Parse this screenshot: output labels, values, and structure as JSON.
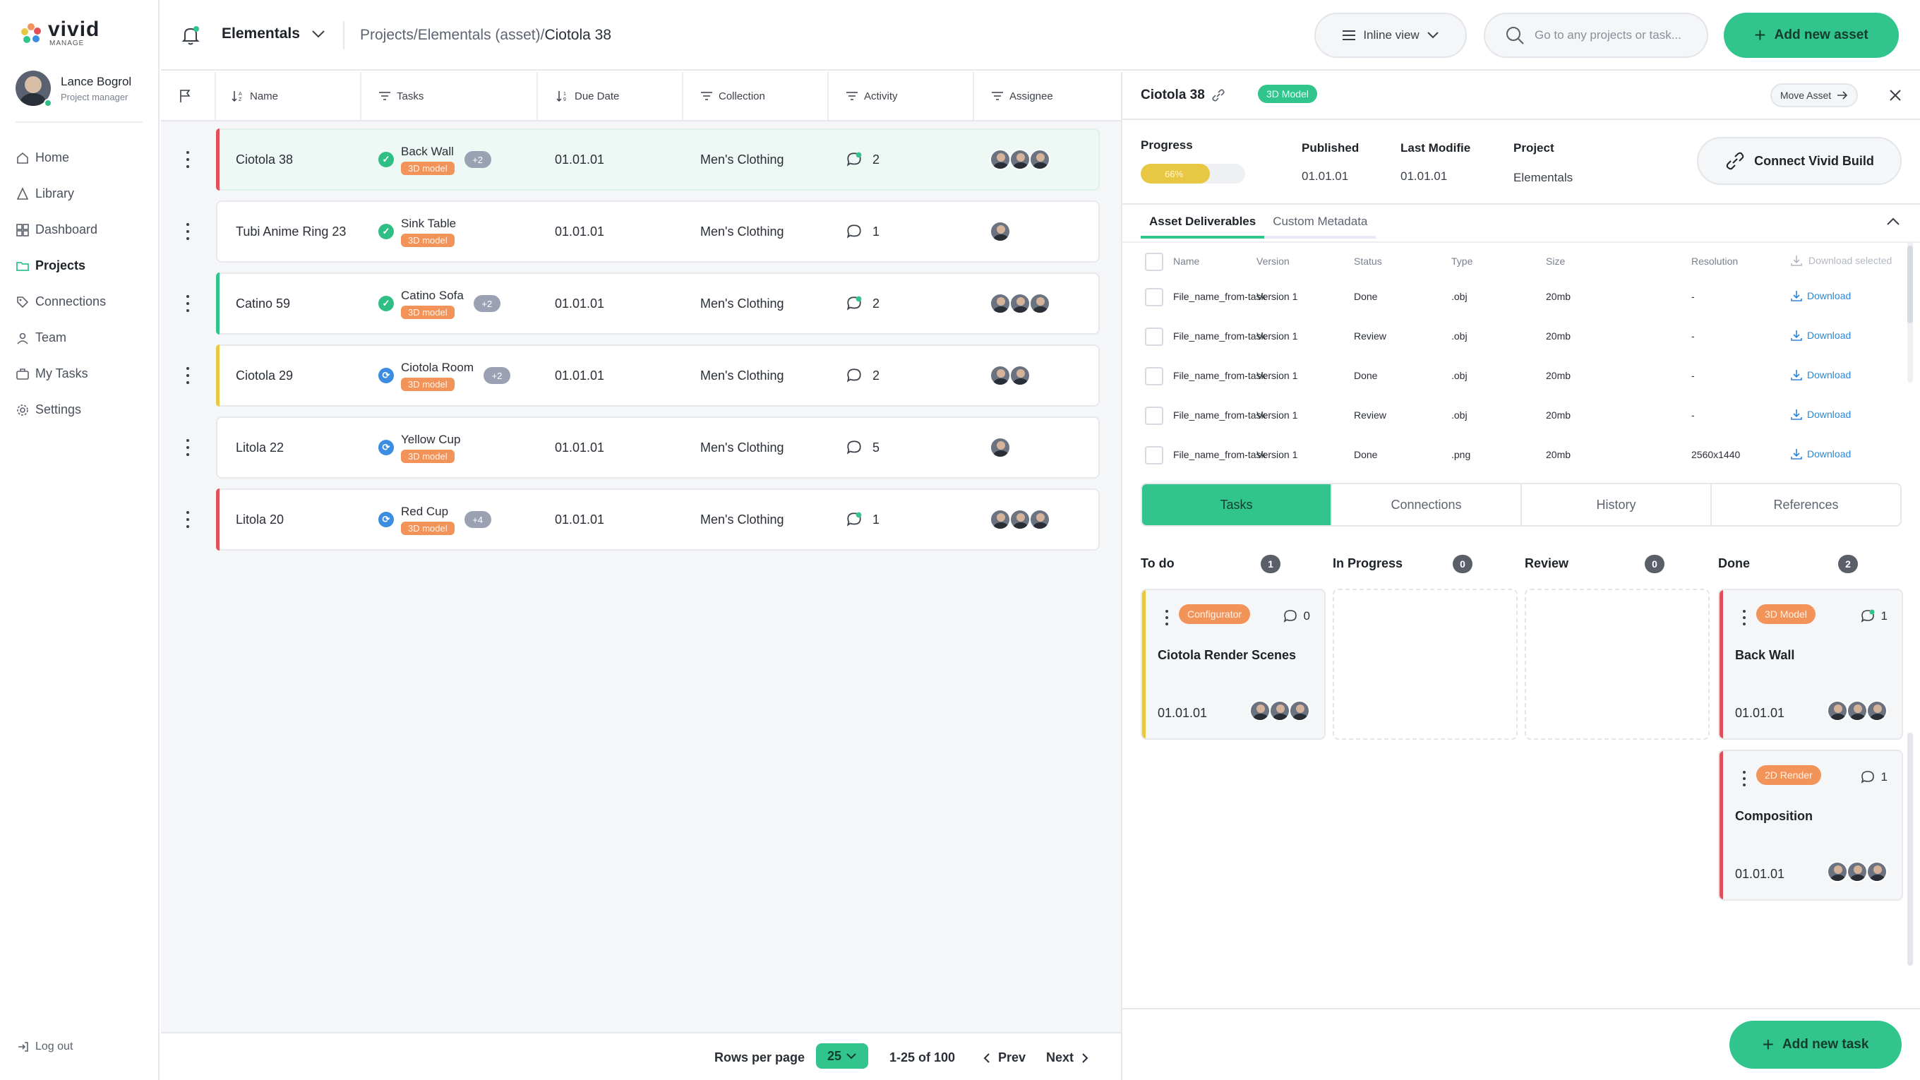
{
  "app": {
    "brand": "vivid",
    "brand_sub": "MANAGE"
  },
  "user": {
    "name": "Lance Bogrol",
    "role": "Project manager"
  },
  "nav": [
    {
      "label": "Home",
      "icon": "home-icon"
    },
    {
      "label": "Library",
      "icon": "library-icon"
    },
    {
      "label": "Dashboard",
      "icon": "dashboard-icon"
    },
    {
      "label": "Projects",
      "icon": "folder-icon",
      "active": true
    },
    {
      "label": "Connections",
      "icon": "tag-icon"
    },
    {
      "label": "Team",
      "icon": "person-icon"
    },
    {
      "label": "My Tasks",
      "icon": "briefcase-icon"
    },
    {
      "label": "Settings",
      "icon": "gear-icon"
    }
  ],
  "logout": "Log out",
  "topbar": {
    "project": "Elementals",
    "breadcrumb_path": "Projects/Elementals (asset)/",
    "breadcrumb_current": "Ciotola 38",
    "view": "Inline view",
    "search_placeholder": "Go to any projects or task...",
    "add_asset": "Add new asset"
  },
  "table": {
    "columns": [
      "Name",
      "Tasks",
      "Due Date",
      "Collection",
      "Activity",
      "Assignee"
    ],
    "rows": [
      {
        "name": "Ciotola 38",
        "task": "Back Wall",
        "tag": "3D model",
        "status": "done",
        "more": "+2",
        "due": "01.01.01",
        "collection": "Men's Clothing",
        "activity": "2",
        "activity_new": true,
        "assignees": 3,
        "bar": "#e0505a",
        "selected": true
      },
      {
        "name": "Tubi Anime Ring 23",
        "task": "Sink Table",
        "tag": "3D model",
        "status": "done",
        "more": "",
        "due": "01.01.01",
        "collection": "Men's Clothing",
        "activity": "1",
        "activity_new": false,
        "assignees": 1,
        "bar": ""
      },
      {
        "name": "Catino 59",
        "task": "Catino Sofa",
        "tag": "3D model",
        "status": "done",
        "more": "+2",
        "due": "01.01.01",
        "collection": "Men's Clothing",
        "activity": "2",
        "activity_new": true,
        "assignees": 3,
        "bar": "#32c48d"
      },
      {
        "name": "Ciotola 29",
        "task": "Ciotola Room",
        "tag": "3D model",
        "status": "progress",
        "more": "+2",
        "due": "01.01.01",
        "collection": "Men's Clothing",
        "activity": "2",
        "activity_new": false,
        "assignees": 2,
        "bar": "#e8c842"
      },
      {
        "name": "Litola 22",
        "task": "Yellow Cup",
        "tag": "3D model",
        "status": "progress",
        "more": "",
        "due": "01.01.01",
        "collection": "Men's Clothing",
        "activity": "5",
        "activity_new": false,
        "assignees": 1,
        "bar": ""
      },
      {
        "name": "Litola 20",
        "task": "Red Cup",
        "tag": "3D model",
        "status": "progress",
        "more": "+4",
        "due": "01.01.01",
        "collection": "Men's Clothing",
        "activity": "1",
        "activity_new": true,
        "assignees": 3,
        "bar": "#e0505a"
      }
    ]
  },
  "pager": {
    "label": "Rows per page",
    "rows": "25",
    "range": "1-25 of 100",
    "prev": "Prev",
    "next": "Next"
  },
  "panel": {
    "title": "Ciotola 38",
    "badge": "3D Model",
    "move": "Move Asset",
    "progress_label": "Progress",
    "progress_value": "66%",
    "progress_fraction": 0.66,
    "published_label": "Published",
    "published": "01.01.01",
    "modified_label": "Last Modifie",
    "modified": "01.01.01",
    "project_label": "Project",
    "project": "Elementals",
    "connect": "Connect Vivid Build",
    "subtabs": [
      "Asset Deliverables",
      "Custom Metadata"
    ],
    "deliverables": {
      "columns": [
        "Name",
        "Version",
        "Status",
        "Type",
        "Size",
        "Resolution",
        "Download selected"
      ],
      "rows": [
        {
          "name": "File_name_from-task",
          "version": "Version 1",
          "status": "Done",
          "type": ".obj",
          "size": "20mb",
          "res": "-",
          "dl": "Download"
        },
        {
          "name": "File_name_from-task",
          "version": "Version 1",
          "status": "Review",
          "type": ".obj",
          "size": "20mb",
          "res": "-",
          "dl": "Download"
        },
        {
          "name": "File_name_from-task",
          "version": "Version 1",
          "status": "Done",
          "type": ".obj",
          "size": "20mb",
          "res": "-",
          "dl": "Download"
        },
        {
          "name": "File_name_from-task",
          "version": "Version 1",
          "status": "Review",
          "type": ".obj",
          "size": "20mb",
          "res": "-",
          "dl": "Download"
        },
        {
          "name": "File_name_from-task",
          "version": "Version 1",
          "status": "Done",
          "type": ".png",
          "size": "20mb",
          "res": "2560x1440",
          "dl": "Download"
        }
      ]
    },
    "tabs": [
      "Tasks",
      "Connections",
      "History",
      "References"
    ],
    "kanban": [
      {
        "title": "To do",
        "count": "1"
      },
      {
        "title": "In Progress",
        "count": "0"
      },
      {
        "title": "Review",
        "count": "0"
      },
      {
        "title": "Done",
        "count": "2"
      }
    ],
    "cards": {
      "todo1": {
        "tag": "Configurator",
        "comments": "0",
        "title": "Ciotola Render Scenes",
        "date": "01.01.01"
      },
      "done1": {
        "tag": "3D Model",
        "comments": "1",
        "title": "Back Wall",
        "date": "01.01.01"
      },
      "done2": {
        "tag": "2D Render",
        "comments": "1",
        "title": "Composition",
        "date": "01.01.01"
      }
    },
    "add_task": "Add new task"
  },
  "colors": {
    "accent": "#32c48d",
    "red": "#e0505a",
    "yellow": "#e8c842",
    "orange": "#f2935a",
    "blue": "#2f87d6"
  }
}
